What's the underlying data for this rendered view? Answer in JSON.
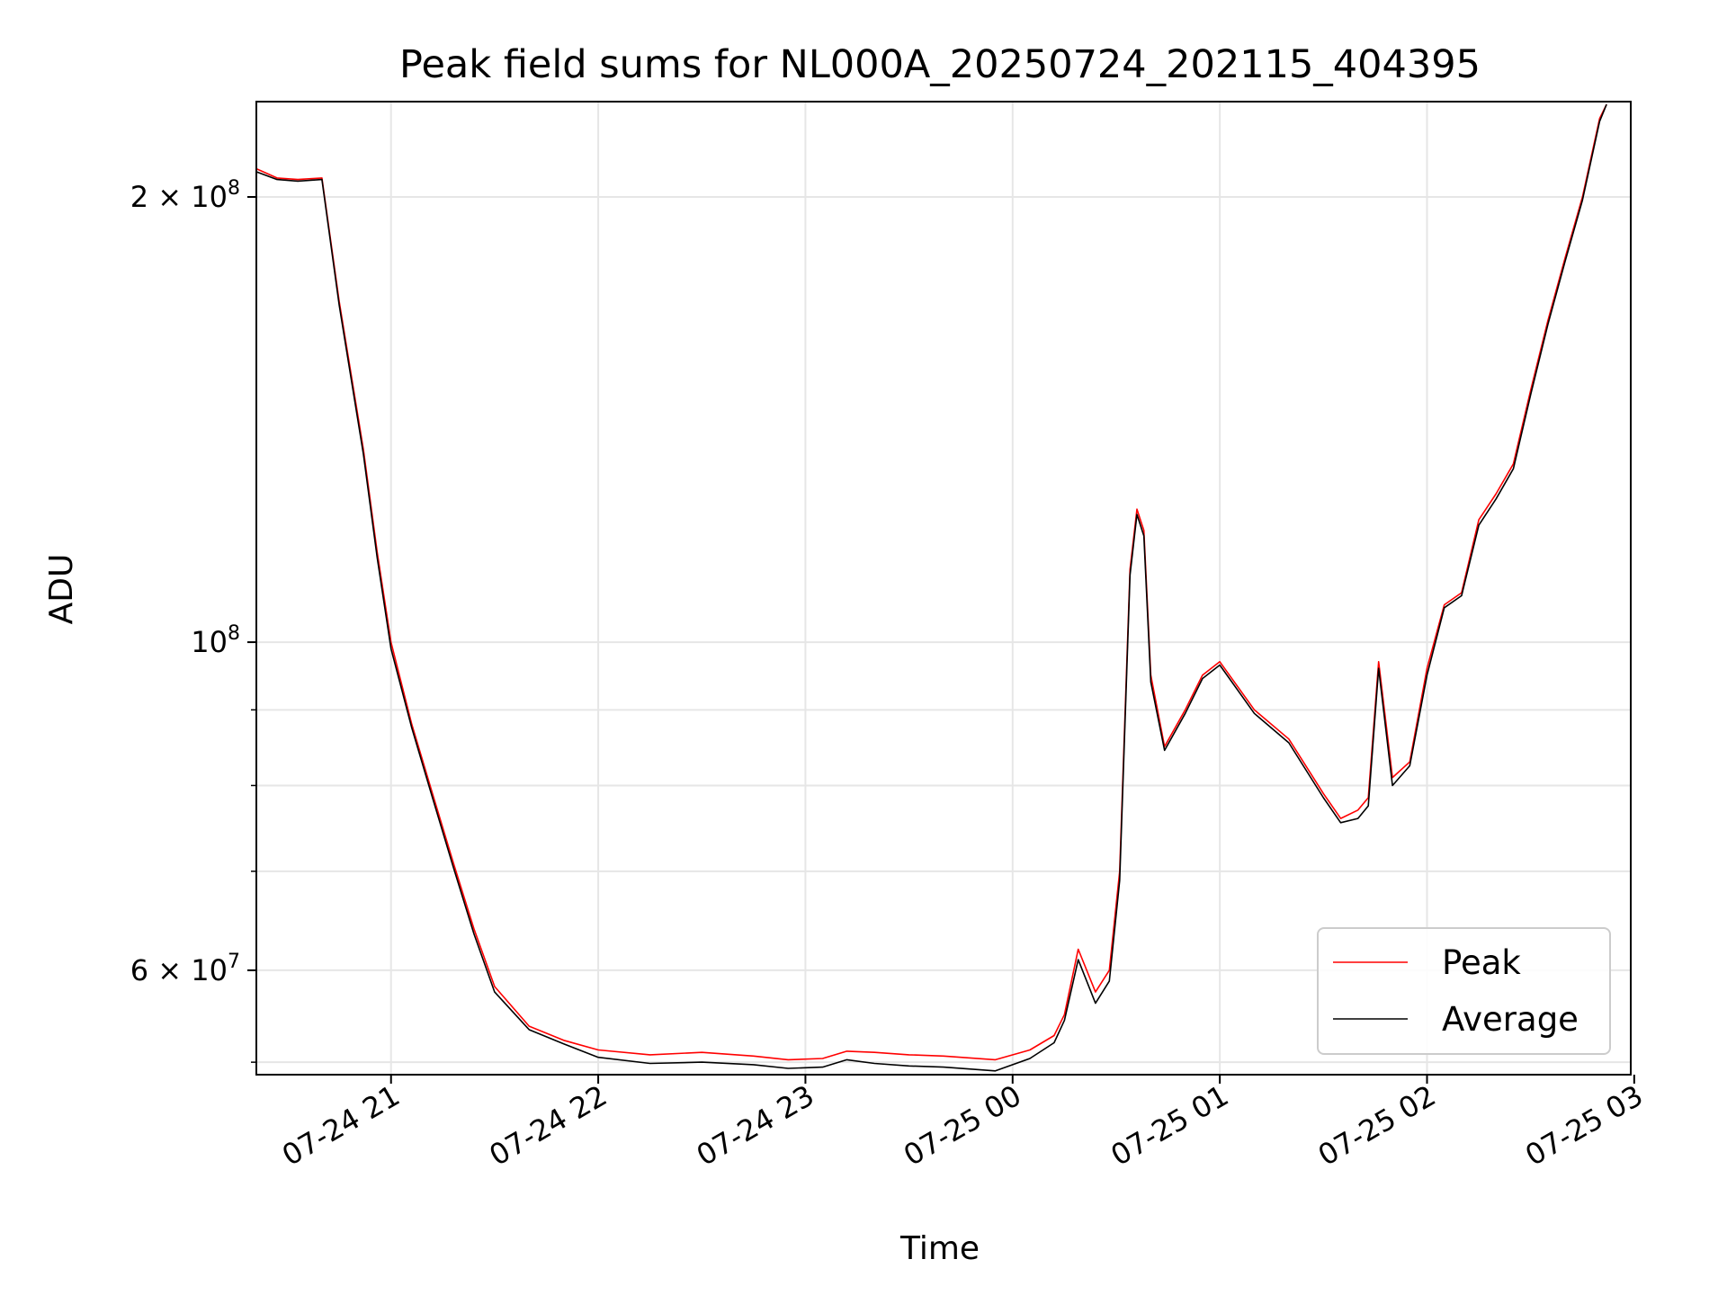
{
  "chart_data": {
    "type": "line",
    "title": "Peak field sums for NL000A_20250724_202115_404395",
    "xlabel": "Time",
    "ylabel": "ADU",
    "yscale": "log",
    "grid": true,
    "legend_position": "lower-right",
    "xlim": [
      "2025-07-24 20:21",
      "2025-07-25 02:59"
    ],
    "ylim": [
      51000000,
      232000000
    ],
    "x_ticks": [
      {
        "t": "2025-07-24 21:00",
        "label": "07-24 21"
      },
      {
        "t": "2025-07-24 22:00",
        "label": "07-24 22"
      },
      {
        "t": "2025-07-24 23:00",
        "label": "07-24 23"
      },
      {
        "t": "2025-07-25 00:00",
        "label": "07-25 00"
      },
      {
        "t": "2025-07-25 01:00",
        "label": "07-25 01"
      },
      {
        "t": "2025-07-25 02:00",
        "label": "07-25 02"
      },
      {
        "t": "2025-07-25 03:00",
        "label": "07-25 03"
      }
    ],
    "y_ticks": [
      {
        "value": 200000000,
        "base": "2 × 10",
        "exp": "8"
      },
      {
        "value": 100000000,
        "base": "10",
        "exp": "8"
      },
      {
        "value": 60000000,
        "base": "6 × 10",
        "exp": "7"
      }
    ],
    "y_minor_ticks": [
      52000000,
      70000000,
      80000000,
      90000000
    ],
    "series": [
      {
        "name": "Peak",
        "color": "#ff0000",
        "x": [
          "2025-07-24 20:21",
          "2025-07-24 20:27",
          "2025-07-24 20:33",
          "2025-07-24 20:40",
          "2025-07-24 20:45",
          "2025-07-24 20:52",
          "2025-07-24 20:56",
          "2025-07-24 21:00",
          "2025-07-24 21:06",
          "2025-07-24 21:12",
          "2025-07-24 21:18",
          "2025-07-24 21:24",
          "2025-07-24 21:30",
          "2025-07-24 21:40",
          "2025-07-24 21:50",
          "2025-07-24 22:00",
          "2025-07-24 22:15",
          "2025-07-24 22:30",
          "2025-07-24 22:45",
          "2025-07-24 22:55",
          "2025-07-24 23:05",
          "2025-07-24 23:12",
          "2025-07-24 23:20",
          "2025-07-24 23:30",
          "2025-07-24 23:40",
          "2025-07-24 23:55",
          "2025-07-25 00:05",
          "2025-07-25 00:12",
          "2025-07-25 00:15",
          "2025-07-25 00:19",
          "2025-07-25 00:24",
          "2025-07-25 00:28",
          "2025-07-25 00:31",
          "2025-07-25 00:34",
          "2025-07-25 00:36",
          "2025-07-25 00:38",
          "2025-07-25 00:40",
          "2025-07-25 00:44",
          "2025-07-25 00:50",
          "2025-07-25 00:55",
          "2025-07-25 01:00",
          "2025-07-25 01:10",
          "2025-07-25 01:20",
          "2025-07-25 01:30",
          "2025-07-25 01:35",
          "2025-07-25 01:40",
          "2025-07-25 01:43",
          "2025-07-25 01:46",
          "2025-07-25 01:50",
          "2025-07-25 01:55",
          "2025-07-25 02:00",
          "2025-07-25 02:05",
          "2025-07-25 02:10",
          "2025-07-25 02:15",
          "2025-07-25 02:20",
          "2025-07-25 02:25",
          "2025-07-25 02:30",
          "2025-07-25 02:35",
          "2025-07-25 02:40",
          "2025-07-25 02:45",
          "2025-07-25 02:50",
          "2025-07-25 02:52"
        ],
        "values": [
          209000000,
          206000000,
          205500000,
          206000000,
          170000000,
          135000000,
          115000000,
          100000000,
          88000000,
          79000000,
          71000000,
          64000000,
          58500000,
          55000000,
          53800000,
          53000000,
          52600000,
          52800000,
          52500000,
          52200000,
          52300000,
          52900000,
          52800000,
          52600000,
          52500000,
          52200000,
          53000000,
          54200000,
          56000000,
          62000000,
          58000000,
          60000000,
          70000000,
          112000000,
          123000000,
          119000000,
          95000000,
          85000000,
          90000000,
          95000000,
          97000000,
          90000000,
          86000000,
          79000000,
          76000000,
          77000000,
          78500000,
          97000000,
          81000000,
          83000000,
          96000000,
          106000000,
          108000000,
          121000000,
          126000000,
          132000000,
          148000000,
          165000000,
          182000000,
          200000000,
          226000000,
          231000000
        ]
      },
      {
        "name": "Average",
        "color": "#000000",
        "x": [
          "2025-07-24 20:21",
          "2025-07-24 20:27",
          "2025-07-24 20:33",
          "2025-07-24 20:40",
          "2025-07-24 20:45",
          "2025-07-24 20:52",
          "2025-07-24 20:56",
          "2025-07-24 21:00",
          "2025-07-24 21:06",
          "2025-07-24 21:12",
          "2025-07-24 21:18",
          "2025-07-24 21:24",
          "2025-07-24 21:30",
          "2025-07-24 21:40",
          "2025-07-24 21:50",
          "2025-07-24 22:00",
          "2025-07-24 22:15",
          "2025-07-24 22:30",
          "2025-07-24 22:45",
          "2025-07-24 22:55",
          "2025-07-24 23:05",
          "2025-07-24 23:12",
          "2025-07-24 23:20",
          "2025-07-24 23:30",
          "2025-07-24 23:40",
          "2025-07-24 23:55",
          "2025-07-25 00:05",
          "2025-07-25 00:12",
          "2025-07-25 00:15",
          "2025-07-25 00:19",
          "2025-07-25 00:24",
          "2025-07-25 00:28",
          "2025-07-25 00:31",
          "2025-07-25 00:34",
          "2025-07-25 00:36",
          "2025-07-25 00:38",
          "2025-07-25 00:40",
          "2025-07-25 00:44",
          "2025-07-25 00:50",
          "2025-07-25 00:55",
          "2025-07-25 01:00",
          "2025-07-25 01:10",
          "2025-07-25 01:20",
          "2025-07-25 01:30",
          "2025-07-25 01:35",
          "2025-07-25 01:40",
          "2025-07-25 01:43",
          "2025-07-25 01:46",
          "2025-07-25 01:50",
          "2025-07-25 01:55",
          "2025-07-25 02:00",
          "2025-07-25 02:05",
          "2025-07-25 02:10",
          "2025-07-25 02:15",
          "2025-07-25 02:20",
          "2025-07-25 02:25",
          "2025-07-25 02:30",
          "2025-07-25 02:35",
          "2025-07-25 02:40",
          "2025-07-25 02:45",
          "2025-07-25 02:50",
          "2025-07-25 02:52"
        ],
        "values": [
          208000000,
          205500000,
          205000000,
          205500000,
          169000000,
          134000000,
          114000000,
          99000000,
          87500000,
          78500000,
          70500000,
          63500000,
          58000000,
          54700000,
          53500000,
          52400000,
          51900000,
          52000000,
          51800000,
          51500000,
          51600000,
          52200000,
          51900000,
          51700000,
          51600000,
          51300000,
          52300000,
          53600000,
          55500000,
          61000000,
          57000000,
          59000000,
          69000000,
          111000000,
          122000000,
          118000000,
          94000000,
          84500000,
          89500000,
          94500000,
          96500000,
          89500000,
          85500000,
          78500000,
          75500000,
          76000000,
          77500000,
          96000000,
          80000000,
          82500000,
          95000000,
          105500000,
          107500000,
          120000000,
          125000000,
          131000000,
          147000000,
          164000000,
          181000000,
          199000000,
          225000000,
          231000000
        ]
      }
    ]
  }
}
